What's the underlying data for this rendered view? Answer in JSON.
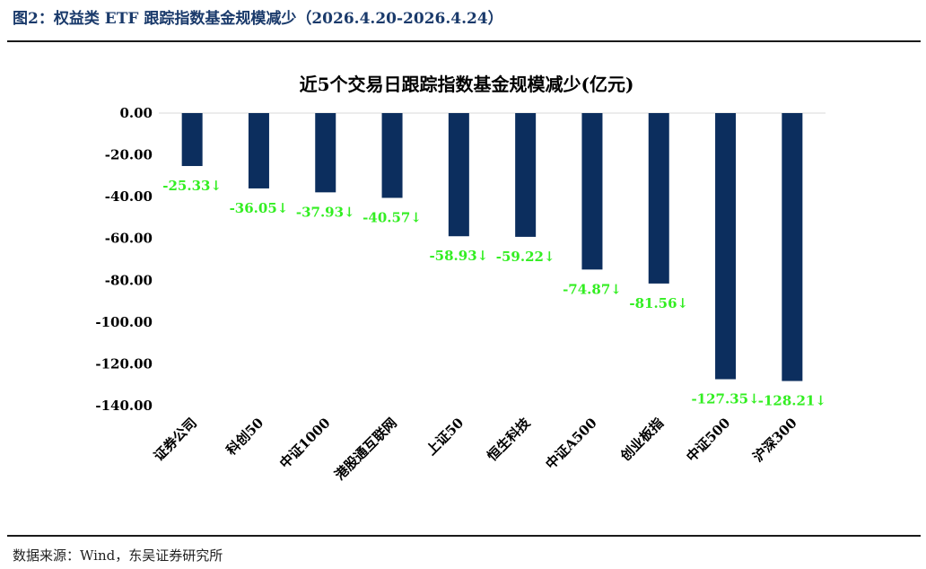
{
  "figure": {
    "title": "图2：权益类 ETF 跟踪指数基金规模减少（2026.4.20-2026.4.24）",
    "source": "数据来源：Wind，东吴证券研究所"
  },
  "colors": {
    "bar": "#0c2e5e",
    "label": "#33ee22",
    "figure_title": "#1a3a6b"
  },
  "chart_data": {
    "type": "bar",
    "title": "近5个交易日跟踪指数基金规模减少(亿元)",
    "xlabel": "",
    "ylabel": "",
    "categories": [
      "证券公司",
      "科创50",
      "中证1000",
      "港股通互联网",
      "上证50",
      "恒生科技",
      "中证A500",
      "创业板指",
      "中证500",
      "沪深300"
    ],
    "values": [
      -25.33,
      -36.05,
      -37.93,
      -40.57,
      -58.93,
      -59.22,
      -74.87,
      -81.56,
      -127.35,
      -128.21
    ],
    "data_labels": [
      "-25.33↓",
      "-36.05↓",
      "-37.93↓",
      "-40.57↓",
      "-58.93↓",
      "-59.22↓",
      "-74.87↓",
      "-81.56↓",
      "-127.35↓",
      "-128.21↓"
    ],
    "ylim": [
      -140,
      0
    ],
    "yticks": [
      0,
      -20,
      -40,
      -60,
      -80,
      -100,
      -120,
      -140
    ],
    "ytick_labels": [
      "0.00",
      "-20.00",
      "-40.00",
      "-60.00",
      "-80.00",
      "-100.00",
      "-120.00",
      "-140.00"
    ],
    "grid": false,
    "legend": "none"
  }
}
